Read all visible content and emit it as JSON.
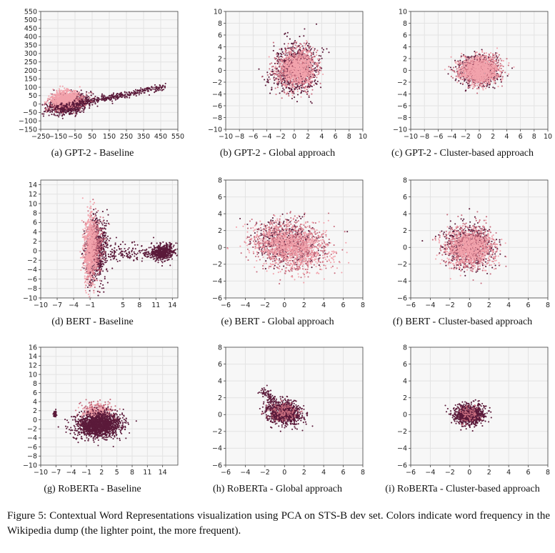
{
  "colors": {
    "frequent": "#f2a3ac",
    "mid": "#c76d7e",
    "rare": "#5b1a3a",
    "plot_bg": "#f7f7f7",
    "grid": "#e3e3e3"
  },
  "figure_caption": "Figure 5: Contextual Word Representations visualization using PCA on STS-B dev set. Colors indicate word frequency in the Wikipedia dump (the lighter point, the more frequent).",
  "chart_data": [
    {
      "id": "a",
      "type": "scatter",
      "caption": "(a)  GPT-2 - Baseline",
      "xlim": [
        -250,
        550
      ],
      "ylim": [
        -150,
        550
      ],
      "xticks": [
        -250,
        -150,
        -50,
        50,
        150,
        250,
        350,
        450,
        550
      ],
      "xtick_labels": [
        "−250",
        "−150",
        "−50",
        "50",
        "150",
        "250",
        "350",
        "450",
        "550"
      ],
      "yticks": [
        -150,
        -100,
        -50,
        0,
        50,
        100,
        150,
        200,
        250,
        300,
        350,
        400,
        450,
        500,
        550
      ],
      "ytick_labels": [
        "−150",
        "−100",
        "−50",
        "0",
        "50",
        "100",
        "150",
        "200",
        "250",
        "300",
        "350",
        "400",
        "450",
        "500",
        "550"
      ],
      "grid": true,
      "clusters": [
        {
          "shade": "rare",
          "n": 1100,
          "cx": -85,
          "cy": 0,
          "sx": 55,
          "sy": 28,
          "rho": 0.35,
          "seed": 11
        },
        {
          "shade": "mid",
          "n": 400,
          "cx": -90,
          "cy": 15,
          "sx": 50,
          "sy": 25,
          "rho": 0.3,
          "seed": 12
        },
        {
          "shade": "frequent",
          "n": 650,
          "cx": -110,
          "cy": 35,
          "sx": 40,
          "sy": 22,
          "rho": 0.2,
          "seed": 13
        },
        {
          "shade": "rare",
          "n": 380,
          "line": true,
          "x0": -150,
          "x1": 480,
          "y0": -20,
          "y1": 105,
          "jitter": 10,
          "seed": 14
        }
      ]
    },
    {
      "id": "b",
      "type": "scatter",
      "caption": "(b)  GPT-2 - Global approach",
      "xlim": [
        -10,
        10
      ],
      "ylim": [
        -10,
        10
      ],
      "xticks": [
        -10,
        -8,
        -6,
        -4,
        -2,
        0,
        2,
        4,
        6,
        8,
        10
      ],
      "xtick_labels": [
        "−10",
        "−8",
        "−6",
        "−4",
        "−2",
        "0",
        "2",
        "4",
        "6",
        "8",
        "10"
      ],
      "yticks": [
        -10,
        -8,
        -6,
        -4,
        -2,
        0,
        2,
        4,
        6,
        8,
        10
      ],
      "ytick_labels": [
        "−10",
        "−8",
        "−6",
        "−4",
        "−2",
        "0",
        "2",
        "4",
        "6",
        "8",
        "10"
      ],
      "grid": true,
      "clusters": [
        {
          "shade": "rare",
          "n": 900,
          "cx": 0.3,
          "cy": 0.3,
          "sx": 1.6,
          "sy": 2.0,
          "rho": 0.1,
          "seed": 21
        },
        {
          "shade": "mid",
          "n": 600,
          "cx": 0.3,
          "cy": 0.3,
          "sx": 1.4,
          "sy": 1.7,
          "rho": 0.1,
          "seed": 22
        },
        {
          "shade": "frequent",
          "n": 700,
          "cx": 0.4,
          "cy": 0.2,
          "sx": 1.3,
          "sy": 1.5,
          "rho": 0.05,
          "seed": 23
        }
      ]
    },
    {
      "id": "c",
      "type": "scatter",
      "caption": "(c)  GPT-2 - Cluster-based approach",
      "xlim": [
        -10,
        10
      ],
      "ylim": [
        -10,
        10
      ],
      "xticks": [
        -10,
        -8,
        -6,
        -4,
        -2,
        0,
        2,
        4,
        6,
        8,
        10
      ],
      "xtick_labels": [
        "−10",
        "−8",
        "−6",
        "−4",
        "−2",
        "0",
        "2",
        "4",
        "6",
        "8",
        "10"
      ],
      "yticks": [
        -10,
        -8,
        -6,
        -4,
        -2,
        0,
        2,
        4,
        6,
        8,
        10
      ],
      "ytick_labels": [
        "−10",
        "−8",
        "−6",
        "−4",
        "−2",
        "0",
        "2",
        "4",
        "6",
        "8",
        "10"
      ],
      "grid": true,
      "clusters": [
        {
          "shade": "rare",
          "n": 600,
          "cx": 0,
          "cy": 0,
          "sx": 1.5,
          "sy": 1.2,
          "rho": 0,
          "seed": 31
        },
        {
          "shade": "mid",
          "n": 800,
          "cx": 0,
          "cy": 0,
          "sx": 1.4,
          "sy": 1.1,
          "rho": 0,
          "seed": 32
        },
        {
          "shade": "frequent",
          "n": 900,
          "cx": 0,
          "cy": 0.1,
          "sx": 1.4,
          "sy": 1.1,
          "rho": 0,
          "seed": 33
        }
      ]
    },
    {
      "id": "d",
      "type": "scatter",
      "caption": "(d)  BERT - Baseline",
      "xlim": [
        -10,
        15
      ],
      "ylim": [
        -10,
        15
      ],
      "xticks": [
        -10,
        -7,
        -4,
        -1,
        2,
        5,
        8,
        11,
        14
      ],
      "xtick_labels": [
        "−10",
        "−7",
        "−4",
        "−1",
        "5",
        "8",
        "11",
        "14"
      ],
      "xtick_values": [
        -10,
        -7,
        -4,
        -1,
        5,
        8,
        11,
        14
      ],
      "yticks": [
        -10,
        -8,
        -6,
        -4,
        -2,
        0,
        2,
        4,
        6,
        8,
        10,
        12,
        14
      ],
      "ytick_labels": [
        "−10",
        "−8",
        "−6",
        "−4",
        "−2",
        "0",
        "2",
        "4",
        "6",
        "8",
        "10",
        "12",
        "14"
      ],
      "grid": true,
      "clusters": [
        {
          "shade": "rare",
          "n": 700,
          "cx": 0.2,
          "cy": 0,
          "sx": 1.0,
          "sy": 3.4,
          "rho": 0.15,
          "seed": 41
        },
        {
          "shade": "mid",
          "n": 500,
          "cx": -0.3,
          "cy": 0.5,
          "sx": 0.8,
          "sy": 3.6,
          "rho": 0.1,
          "seed": 42
        },
        {
          "shade": "frequent",
          "n": 600,
          "cx": -1.0,
          "cy": 0.5,
          "sx": 0.6,
          "sy": 3.8,
          "rho": 0.05,
          "seed": 43
        },
        {
          "shade": "rare",
          "n": 500,
          "cx": 12.2,
          "cy": -0.3,
          "sx": 1.1,
          "sy": 0.9,
          "rho": 0.2,
          "seed": 44
        },
        {
          "shade": "rare",
          "n": 150,
          "line": true,
          "x0": 1.5,
          "x1": 11,
          "y0": 0,
          "y1": -0.5,
          "jitter": 0.9,
          "seed": 45
        }
      ]
    },
    {
      "id": "e",
      "type": "scatter",
      "caption": "(e)  BERT - Global approach",
      "xlim": [
        -6,
        8
      ],
      "ylim": [
        -6,
        8
      ],
      "xticks": [
        -6,
        -4,
        -2,
        0,
        2,
        4,
        6,
        8
      ],
      "xtick_labels": [
        "−6",
        "−4",
        "−2",
        "0",
        "2",
        "4",
        "6",
        "8"
      ],
      "yticks": [
        -6,
        -4,
        -2,
        0,
        2,
        4,
        6,
        8
      ],
      "ytick_labels": [
        "−6",
        "−4",
        "−2",
        "0",
        "2",
        "4",
        "6",
        "8"
      ],
      "grid": true,
      "clusters": [
        {
          "shade": "rare",
          "n": 500,
          "cx": 0.3,
          "cy": 0.5,
          "sx": 1.6,
          "sy": 1.3,
          "rho": -0.1,
          "seed": 51
        },
        {
          "shade": "mid",
          "n": 900,
          "cx": 0.5,
          "cy": 0.3,
          "sx": 1.8,
          "sy": 1.4,
          "rho": -0.15,
          "seed": 52
        },
        {
          "shade": "frequent",
          "n": 900,
          "cx": 0.8,
          "cy": 0.1,
          "sx": 2.0,
          "sy": 1.4,
          "rho": -0.2,
          "seed": 53
        }
      ]
    },
    {
      "id": "f",
      "type": "scatter",
      "caption": "(f)  BERT - Cluster-based approach",
      "xlim": [
        -6,
        8
      ],
      "ylim": [
        -6,
        8
      ],
      "xticks": [
        -6,
        -4,
        -2,
        0,
        2,
        4,
        6,
        8
      ],
      "xtick_labels": [
        "−6",
        "−4",
        "−2",
        "0",
        "2",
        "4",
        "6",
        "8"
      ],
      "yticks": [
        -6,
        -4,
        -2,
        0,
        2,
        4,
        6,
        8
      ],
      "ytick_labels": [
        "−6",
        "−4",
        "−2",
        "0",
        "2",
        "4",
        "6",
        "8"
      ],
      "grid": true,
      "clusters": [
        {
          "shade": "rare",
          "n": 700,
          "cx": 0,
          "cy": 0.2,
          "sx": 1.2,
          "sy": 1.2,
          "rho": 0,
          "seed": 61
        },
        {
          "shade": "mid",
          "n": 700,
          "cx": 0,
          "cy": 0,
          "sx": 1.2,
          "sy": 1.2,
          "rho": 0,
          "seed": 62
        },
        {
          "shade": "frequent",
          "n": 800,
          "cx": 0,
          "cy": -0.1,
          "sx": 1.2,
          "sy": 1.1,
          "rho": 0,
          "seed": 63
        }
      ]
    },
    {
      "id": "g",
      "type": "scatter",
      "caption": "(g)  RoBERTa - Baseline",
      "xlim": [
        -10,
        17
      ],
      "ylim": [
        -10,
        16
      ],
      "xticks": [
        -10,
        -7,
        -4,
        -1,
        2,
        5,
        8,
        11,
        14
      ],
      "xtick_labels": [
        "−10",
        "−7",
        "−4",
        "−1",
        "2",
        "5",
        "8",
        "11",
        "14"
      ],
      "yticks": [
        -10,
        -8,
        -6,
        -4,
        -2,
        0,
        2,
        4,
        6,
        8,
        10,
        12,
        14,
        16
      ],
      "ytick_labels": [
        "−10",
        "−8",
        "−6",
        "−4",
        "−2",
        "0",
        "2",
        "4",
        "6",
        "8",
        "10",
        "12",
        "14",
        "16"
      ],
      "grid": true,
      "clusters": [
        {
          "shade": "mid",
          "n": 300,
          "cx": 1.2,
          "cy": 1.6,
          "sx": 1.6,
          "sy": 1.2,
          "rho": 0,
          "seed": 71
        },
        {
          "shade": "frequent",
          "n": 150,
          "cx": 1.0,
          "cy": 1.4,
          "sx": 1.4,
          "sy": 0.9,
          "rho": 0,
          "seed": 72
        },
        {
          "shade": "rare",
          "n": 1500,
          "cx": 1.5,
          "cy": -1.2,
          "sx": 2.2,
          "sy": 1.3,
          "rho": 0.1,
          "seed": 73
        },
        {
          "shade": "rare",
          "n": 60,
          "cx": -7.2,
          "cy": 1.3,
          "sx": 0.15,
          "sy": 0.3,
          "rho": 0,
          "seed": 74
        }
      ]
    },
    {
      "id": "h",
      "type": "scatter",
      "caption": "(h)  RoBERTa - Global approach",
      "xlim": [
        -6,
        8
      ],
      "ylim": [
        -6,
        8
      ],
      "xticks": [
        -6,
        -4,
        -2,
        0,
        2,
        4,
        6,
        8
      ],
      "xtick_labels": [
        "−6",
        "−4",
        "−2",
        "0",
        "2",
        "4",
        "6",
        "8"
      ],
      "yticks": [
        -6,
        -4,
        -2,
        0,
        2,
        4,
        6,
        8
      ],
      "ytick_labels": [
        "−6",
        "−4",
        "−2",
        "0",
        "2",
        "4",
        "6",
        "8"
      ],
      "grid": true,
      "clusters": [
        {
          "shade": "rare",
          "n": 900,
          "cx": 0,
          "cy": 0.2,
          "sx": 0.9,
          "sy": 0.7,
          "rho": -0.2,
          "seed": 81
        },
        {
          "shade": "mid",
          "n": 120,
          "cx": 0,
          "cy": 0.3,
          "sx": 0.7,
          "sy": 0.5,
          "rho": 0,
          "seed": 82
        },
        {
          "shade": "rare",
          "n": 80,
          "line": true,
          "x0": -2.4,
          "x1": -0.5,
          "y0": 2.9,
          "y1": 1.2,
          "jitter": 0.3,
          "seed": 83
        }
      ]
    },
    {
      "id": "i",
      "type": "scatter",
      "caption": "(i)  RoBERTa - Cluster-based approach",
      "xlim": [
        -6,
        8
      ],
      "ylim": [
        -6,
        8
      ],
      "xticks": [
        -6,
        -4,
        -2,
        0,
        2,
        4,
        6,
        8
      ],
      "xtick_labels": [
        "−6",
        "−4",
        "−2",
        "0",
        "2",
        "4",
        "6",
        "8"
      ],
      "yticks": [
        -6,
        -4,
        -2,
        0,
        2,
        4,
        6,
        8
      ],
      "ytick_labels": [
        "−6",
        "−4",
        "−2",
        "0",
        "2",
        "4",
        "6",
        "8"
      ],
      "grid": true,
      "clusters": [
        {
          "shade": "rare",
          "n": 900,
          "cx": 0,
          "cy": 0,
          "sx": 0.75,
          "sy": 0.6,
          "rho": 0,
          "seed": 91
        },
        {
          "shade": "mid",
          "n": 80,
          "cx": 0,
          "cy": 0,
          "sx": 0.6,
          "sy": 0.5,
          "rho": 0,
          "seed": 92
        }
      ]
    }
  ]
}
